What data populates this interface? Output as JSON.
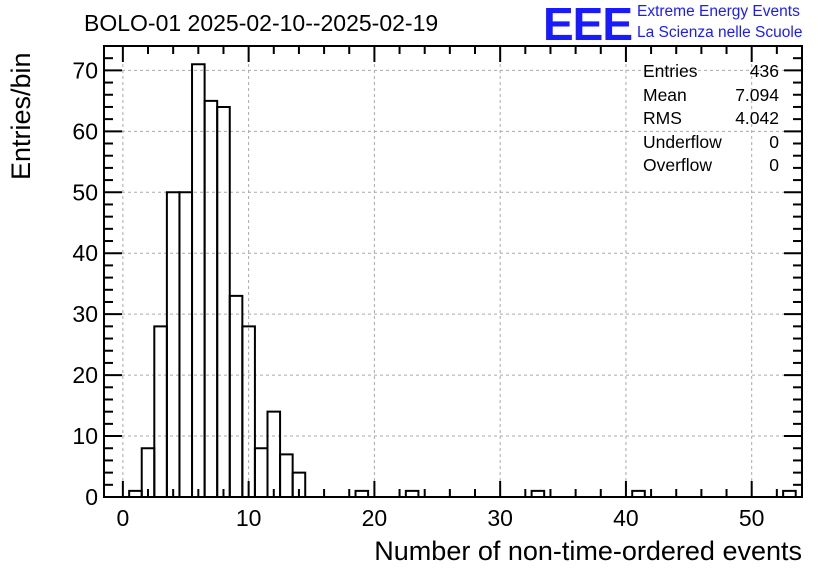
{
  "title": "BOLO-01 2025-02-10--2025-02-19",
  "logo": {
    "mark": "EEE",
    "line1": "Extreme Energy Events",
    "line2": "La Scienza nelle Scuole",
    "color": "#1a1aff"
  },
  "stats": [
    {
      "label": "Entries",
      "value": "436"
    },
    {
      "label": "Mean",
      "value": "7.094"
    },
    {
      "label": "RMS",
      "value": "4.042"
    },
    {
      "label": "Underflow",
      "value": "0"
    },
    {
      "label": "Overflow",
      "value": "0"
    }
  ],
  "chart_data": {
    "type": "bar",
    "style": "step-histogram",
    "xlabel": "Number of non-time-ordered events",
    "ylabel": "Entries/bin",
    "xlim": [
      -1.5,
      54
    ],
    "ylim": [
      0,
      74
    ],
    "bin_width": 1,
    "x_ticks": [
      0,
      10,
      20,
      30,
      40,
      50
    ],
    "y_ticks": [
      0,
      10,
      20,
      30,
      40,
      50,
      60,
      70
    ],
    "grid": true,
    "bins": [
      {
        "x": 1,
        "value": 1
      },
      {
        "x": 2,
        "value": 8
      },
      {
        "x": 3,
        "value": 28
      },
      {
        "x": 4,
        "value": 50
      },
      {
        "x": 5,
        "value": 50
      },
      {
        "x": 6,
        "value": 71
      },
      {
        "x": 7,
        "value": 65
      },
      {
        "x": 8,
        "value": 64
      },
      {
        "x": 9,
        "value": 33
      },
      {
        "x": 10,
        "value": 28
      },
      {
        "x": 11,
        "value": 8
      },
      {
        "x": 12,
        "value": 14
      },
      {
        "x": 13,
        "value": 7
      },
      {
        "x": 14,
        "value": 4
      },
      {
        "x": 19,
        "value": 1
      },
      {
        "x": 23,
        "value": 1
      },
      {
        "x": 33,
        "value": 1
      },
      {
        "x": 41,
        "value": 1
      },
      {
        "x": 53,
        "value": 1
      }
    ]
  }
}
